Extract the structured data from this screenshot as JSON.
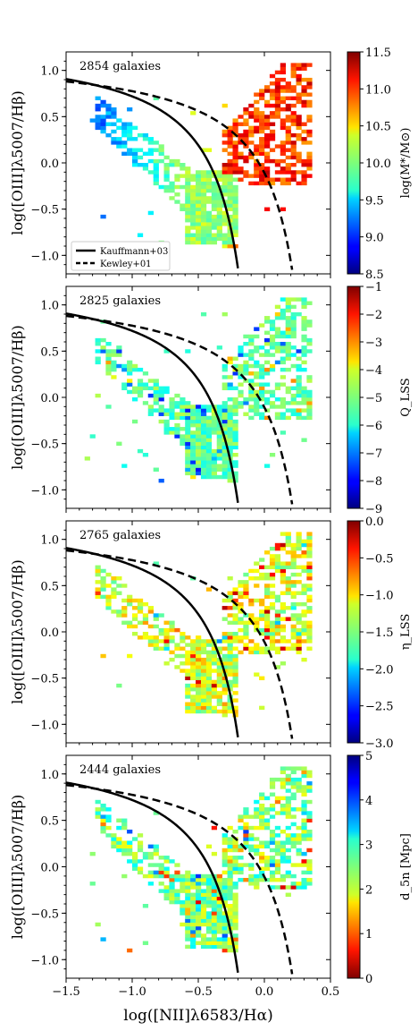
{
  "figure": {
    "shared_xlabel": "log([NII]λ6583/Hα)",
    "x_ticks": [
      -1.5,
      -1.0,
      -0.5,
      0.0,
      0.5
    ],
    "x_tick_labels": [
      "−1.5",
      "−1.0",
      "−0.5",
      "0.0",
      "0.5"
    ],
    "y_ticks": [
      -1.0,
      -0.5,
      0.0,
      0.5,
      1.0
    ],
    "y_tick_labels": [
      "−1.0",
      "−0.5",
      "0.0",
      "0.5",
      "1.0"
    ],
    "legend": [
      {
        "label": "Kauffmann+03",
        "style": "solid"
      },
      {
        "label": "Kewley+01",
        "style": "dashed"
      }
    ],
    "line_color": "#000000"
  },
  "chart_data": [
    {
      "type": "heatmap",
      "annotation": "2854 galaxies",
      "xlabel": "",
      "ylabel": "log([OIII]λ5007/Hβ)",
      "xlim": [
        -1.5,
        0.5
      ],
      "ylim": [
        -1.2,
        1.2
      ],
      "colorbar": {
        "label": "log(M*/M⊙)",
        "range": [
          8.5,
          11.5
        ],
        "ticks": [
          8.5,
          9.0,
          9.5,
          10.0,
          10.5,
          11.0,
          11.5
        ],
        "tick_labels": [
          "8.5",
          "9.0",
          "9.5",
          "10.0",
          "10.5",
          "11.0",
          "11.5"
        ],
        "reversed": false
      },
      "series": [
        {
          "name": "Kauffmann+03",
          "curve": "y = 0.61/(x-0.05) + 1.3",
          "x_range": [
            -1.5,
            -0.19
          ]
        },
        {
          "name": "Kewley+01",
          "curve": "y = 0.61/(x-0.47) + 1.19",
          "x_range": [
            -1.5,
            0.22
          ]
        }
      ],
      "show_legend": true
    },
    {
      "type": "heatmap",
      "annotation": "2825 galaxies",
      "xlabel": "",
      "ylabel": "log([OIII]λ5007/Hβ)",
      "xlim": [
        -1.5,
        0.5
      ],
      "ylim": [
        -1.2,
        1.2
      ],
      "colorbar": {
        "label": "Q_LSS",
        "range": [
          -9,
          -1
        ],
        "ticks": [
          -9,
          -8,
          -7,
          -6,
          -5,
          -4,
          -3,
          -2,
          -1
        ],
        "tick_labels": [
          "−9",
          "−8",
          "−7",
          "−6",
          "−5",
          "−4",
          "−3",
          "−2",
          "−1"
        ],
        "reversed": false
      },
      "series": [
        {
          "name": "Kauffmann+03",
          "curve": "y = 0.61/(x-0.05) + 1.3",
          "x_range": [
            -1.5,
            -0.19
          ]
        },
        {
          "name": "Kewley+01",
          "curve": "y = 0.61/(x-0.47) + 1.19",
          "x_range": [
            -1.5,
            0.22
          ]
        }
      ],
      "show_legend": false
    },
    {
      "type": "heatmap",
      "annotation": "2765 galaxies",
      "xlabel": "",
      "ylabel": "log([OIII]λ5007/Hβ)",
      "xlim": [
        -1.5,
        0.5
      ],
      "ylim": [
        -1.2,
        1.2
      ],
      "colorbar": {
        "label": "η_LSS",
        "range": [
          -3.0,
          0.0
        ],
        "ticks": [
          -3.0,
          -2.5,
          -2.0,
          -1.5,
          -1.0,
          -0.5,
          0.0
        ],
        "tick_labels": [
          "−3.0",
          "−2.5",
          "−2.0",
          "−1.5",
          "−1.0",
          "−0.5",
          "0.0"
        ],
        "reversed": false
      },
      "series": [
        {
          "name": "Kauffmann+03",
          "curve": "y = 0.61/(x-0.05) + 1.3",
          "x_range": [
            -1.5,
            -0.19
          ]
        },
        {
          "name": "Kewley+01",
          "curve": "y = 0.61/(x-0.47) + 1.19",
          "x_range": [
            -1.5,
            0.22
          ]
        }
      ],
      "show_legend": false
    },
    {
      "type": "heatmap",
      "annotation": "2444 galaxies",
      "xlabel": "log([NII]λ6583/Hα)",
      "ylabel": "log([OIII]λ5007/Hβ)",
      "xlim": [
        -1.5,
        0.5
      ],
      "ylim": [
        -1.2,
        1.2
      ],
      "colorbar": {
        "label": "d_5n [Mpc]",
        "range": [
          0,
          5
        ],
        "ticks": [
          0,
          1,
          2,
          3,
          4,
          5
        ],
        "tick_labels": [
          "0",
          "1",
          "2",
          "3",
          "4",
          "5"
        ],
        "reversed": true
      },
      "series": [
        {
          "name": "Kauffmann+03",
          "curve": "y = 0.61/(x-0.05) + 1.3",
          "x_range": [
            -1.5,
            -0.19
          ]
        },
        {
          "name": "Kewley+01",
          "curve": "y = 0.61/(x-0.47) + 1.19",
          "x_range": [
            -1.5,
            0.22
          ]
        }
      ],
      "show_legend": false
    }
  ]
}
